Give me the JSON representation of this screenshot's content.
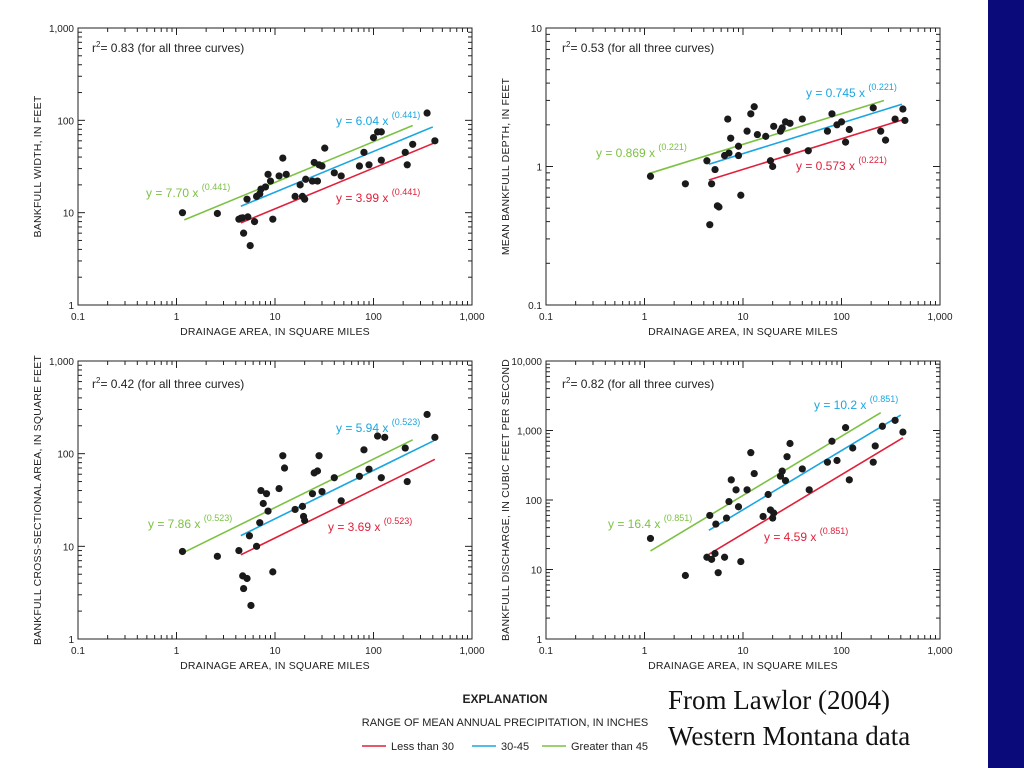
{
  "caption": {
    "line1": "From Lawlor (2004)",
    "line2": "Western Montana data"
  },
  "legend": {
    "heading": "EXPLANATION",
    "subheading": "RANGE OF MEAN ANNUAL PRECIPITATION, IN INCHES",
    "items": [
      {
        "label": "Less than 30",
        "color": "#e0203a"
      },
      {
        "label": "30-45",
        "color": "#1aa6e0"
      },
      {
        "label": "Greater than 45",
        "color": "#7cc242"
      }
    ]
  },
  "chart_data": [
    {
      "type": "scatter",
      "xlabel": "DRAINAGE AREA, IN SQUARE MILES",
      "ylabel": "BANKFULL WIDTH, IN FEET",
      "xscale": "log",
      "yscale": "log",
      "xlim": [
        0.1,
        1000
      ],
      "ylim": [
        1,
        1000
      ],
      "xticks": [
        "0.1",
        "1",
        "10",
        "100",
        "1,000"
      ],
      "yticks": [
        "1",
        "10",
        "100",
        "1,000"
      ],
      "r2": {
        "prefix": "r",
        "sup": "2",
        "text": "= 0.83 (for all three curves)"
      },
      "curves": [
        {
          "series": "Greater than 45",
          "color": "#7cc242",
          "coef": 7.7,
          "exp": 0.441,
          "x_range": [
            1.2,
            250
          ],
          "eq": "y = 7.70 x",
          "eq_exp": "(0.441)"
        },
        {
          "series": "30-45",
          "color": "#1aa6e0",
          "coef": 6.04,
          "exp": 0.441,
          "x_range": [
            4.5,
            400
          ],
          "eq": "y = 6.04 x",
          "eq_exp": "(0.441)"
        },
        {
          "series": "Less than 30",
          "color": "#e0203a",
          "coef": 3.99,
          "exp": 0.441,
          "x_range": [
            4.5,
            420
          ],
          "eq": "y = 3.99 x",
          "eq_exp": "(0.441)"
        }
      ],
      "points": [
        [
          1.15,
          10.0
        ],
        [
          2.6,
          9.8
        ],
        [
          4.3,
          8.5
        ],
        [
          4.5,
          8.7
        ],
        [
          4.7,
          8.8
        ],
        [
          4.8,
          6.0
        ],
        [
          5.2,
          14.0
        ],
        [
          5.3,
          9.0
        ],
        [
          5.6,
          4.4
        ],
        [
          6.2,
          8.0
        ],
        [
          6.5,
          15.0
        ],
        [
          7.0,
          16.0
        ],
        [
          7.2,
          18.0
        ],
        [
          8.0,
          19.0
        ],
        [
          8.5,
          26.0
        ],
        [
          9.0,
          22.0
        ],
        [
          9.5,
          8.5
        ],
        [
          11.0,
          25.0
        ],
        [
          12.0,
          39.0
        ],
        [
          13.0,
          26.0
        ],
        [
          16.0,
          15.0
        ],
        [
          18.0,
          20.0
        ],
        [
          19.0,
          15.0
        ],
        [
          20.0,
          14.0
        ],
        [
          20.5,
          23.0
        ],
        [
          24.0,
          22.0
        ],
        [
          25.0,
          35.0
        ],
        [
          27.0,
          22.0
        ],
        [
          28.0,
          33.0
        ],
        [
          30.0,
          32.0
        ],
        [
          32.0,
          50.0
        ],
        [
          40.0,
          27.0
        ],
        [
          47.0,
          25.0
        ],
        [
          72.0,
          32.0
        ],
        [
          80.0,
          45.0
        ],
        [
          90.0,
          33.0
        ],
        [
          100.0,
          65.0
        ],
        [
          110.0,
          75.0
        ],
        [
          120.0,
          75.0
        ],
        [
          120.0,
          37.0
        ],
        [
          210.0,
          45.0
        ],
        [
          220.0,
          33.0
        ],
        [
          250.0,
          55.0
        ],
        [
          350.0,
          120.0
        ],
        [
          420.0,
          60.0
        ]
      ]
    },
    {
      "type": "scatter",
      "xlabel": "DRAINAGE AREA, IN SQUARE MILES",
      "ylabel": "MEAN BANKFULL  DEPTH, IN FEET",
      "xscale": "log",
      "yscale": "log",
      "xlim": [
        0.1,
        1000
      ],
      "ylim": [
        0.1,
        10
      ],
      "xticks": [
        "0.1",
        "1",
        "10",
        "100",
        "1,000"
      ],
      "yticks": [
        "0.1",
        "1",
        "10"
      ],
      "r2": {
        "prefix": "r",
        "sup": "2",
        "text": "= 0.53 (for all three curves)"
      },
      "curves": [
        {
          "series": "Greater than 45",
          "color": "#7cc242",
          "coef": 0.869,
          "exp": 0.221,
          "x_range": [
            1.1,
            270
          ],
          "eq": "y = 0.869 x",
          "eq_exp": "(0.221)"
        },
        {
          "series": "30-45",
          "color": "#1aa6e0",
          "coef": 0.745,
          "exp": 0.221,
          "x_range": [
            4.5,
            410
          ],
          "eq": "y = 0.745 x",
          "eq_exp": "(0.221)"
        },
        {
          "series": "Less than 30",
          "color": "#e0203a",
          "coef": 0.573,
          "exp": 0.221,
          "x_range": [
            4.5,
            420
          ],
          "eq": "y = 0.573 x",
          "eq_exp": "(0.221)"
        }
      ],
      "points": [
        [
          1.15,
          0.85
        ],
        [
          2.6,
          0.75
        ],
        [
          4.3,
          1.1
        ],
        [
          4.6,
          0.38
        ],
        [
          4.8,
          0.75
        ],
        [
          5.2,
          0.95
        ],
        [
          5.5,
          0.52
        ],
        [
          5.7,
          0.51
        ],
        [
          6.5,
          1.2
        ],
        [
          7.0,
          2.2
        ],
        [
          7.2,
          1.25
        ],
        [
          7.5,
          1.6
        ],
        [
          9.0,
          1.2
        ],
        [
          9.0,
          1.4
        ],
        [
          9.5,
          0.62
        ],
        [
          11.0,
          1.8
        ],
        [
          12.0,
          2.4
        ],
        [
          13.0,
          2.7
        ],
        [
          14.0,
          1.7
        ],
        [
          17.0,
          1.65
        ],
        [
          19.0,
          1.1
        ],
        [
          20.0,
          1.0
        ],
        [
          20.5,
          1.95
        ],
        [
          24.0,
          1.8
        ],
        [
          25.0,
          1.9
        ],
        [
          27.0,
          2.1
        ],
        [
          28.0,
          1.3
        ],
        [
          30.0,
          2.05
        ],
        [
          40.0,
          2.2
        ],
        [
          46.0,
          1.3
        ],
        [
          72.0,
          1.8
        ],
        [
          80.0,
          2.4
        ],
        [
          90.0,
          2.0
        ],
        [
          100.0,
          2.1
        ],
        [
          110.0,
          1.5
        ],
        [
          120.0,
          1.85
        ],
        [
          210.0,
          2.65
        ],
        [
          250.0,
          1.8
        ],
        [
          280.0,
          1.55
        ],
        [
          350.0,
          2.2
        ],
        [
          420.0,
          2.6
        ],
        [
          440.0,
          2.15
        ]
      ]
    },
    {
      "type": "scatter",
      "xlabel": "DRAINAGE AREA, IN SQUARE MILES",
      "ylabel": "BANKFULL CROSS-SECTIONAL AREA, IN SQUARE FEET",
      "xscale": "log",
      "yscale": "log",
      "xlim": [
        0.1,
        1000
      ],
      "ylim": [
        1,
        1000
      ],
      "xticks": [
        "0.1",
        "1",
        "10",
        "100",
        "1,000"
      ],
      "yticks": [
        "1",
        "10",
        "100",
        "1,000"
      ],
      "r2": {
        "prefix": "r",
        "sup": "2",
        "text": "= 0.42 (for all three curves)"
      },
      "curves": [
        {
          "series": "Greater than 45",
          "color": "#7cc242",
          "coef": 7.86,
          "exp": 0.523,
          "x_range": [
            1.15,
            250
          ],
          "eq": "y = 7.86 x",
          "eq_exp": "(0.523)"
        },
        {
          "series": "30-45",
          "color": "#1aa6e0",
          "coef": 5.94,
          "exp": 0.523,
          "x_range": [
            4.5,
            410
          ],
          "eq": "y = 5.94 x",
          "eq_exp": "(0.523)"
        },
        {
          "series": "Less than 30",
          "color": "#e0203a",
          "coef": 3.69,
          "exp": 0.523,
          "x_range": [
            4.5,
            420
          ],
          "eq": "y = 3.69 x",
          "eq_exp": "(0.523)"
        }
      ],
      "points": [
        [
          1.15,
          8.8
        ],
        [
          2.6,
          7.8
        ],
        [
          4.3,
          9.0
        ],
        [
          4.7,
          4.8
        ],
        [
          4.8,
          3.5
        ],
        [
          5.2,
          4.5
        ],
        [
          5.5,
          13.0
        ],
        [
          5.7,
          2.3
        ],
        [
          6.5,
          10.0
        ],
        [
          7.0,
          18.0
        ],
        [
          7.2,
          40.0
        ],
        [
          7.6,
          29.0
        ],
        [
          8.2,
          37.0
        ],
        [
          8.5,
          24.0
        ],
        [
          9.5,
          5.3
        ],
        [
          11.0,
          42.0
        ],
        [
          12.0,
          95.0
        ],
        [
          12.5,
          70.0
        ],
        [
          16.0,
          25.0
        ],
        [
          19.0,
          27.0
        ],
        [
          19.5,
          21.0
        ],
        [
          20.0,
          19.0
        ],
        [
          24.0,
          37.0
        ],
        [
          25.0,
          62.0
        ],
        [
          27.0,
          65.0
        ],
        [
          28.0,
          95.0
        ],
        [
          30.0,
          39.0
        ],
        [
          40.0,
          55.0
        ],
        [
          47.0,
          31.0
        ],
        [
          72.0,
          57.0
        ],
        [
          80.0,
          110.0
        ],
        [
          90.0,
          68.0
        ],
        [
          110.0,
          155.0
        ],
        [
          120.0,
          55.0
        ],
        [
          130.0,
          150.0
        ],
        [
          210.0,
          115.0
        ],
        [
          220.0,
          50.0
        ],
        [
          350.0,
          265.0
        ],
        [
          420.0,
          150.0
        ]
      ]
    },
    {
      "type": "scatter",
      "xlabel": "DRAINAGE AREA, IN SQUARE MILES",
      "ylabel": "BANKFULL DISCHARGE, IN CUBIC FEET PER SECOND",
      "xscale": "log",
      "yscale": "log",
      "xlim": [
        0.1,
        1000
      ],
      "ylim": [
        1,
        10000
      ],
      "xticks": [
        "0.1",
        "1",
        "10",
        "100",
        "1,000"
      ],
      "yticks": [
        "1",
        "10",
        "100",
        "1,000",
        "10,000"
      ],
      "r2": {
        "prefix": "r",
        "sup": "2",
        "text": "= 0.82 (for all three curves)"
      },
      "curves": [
        {
          "series": "Greater than 45",
          "color": "#7cc242",
          "coef": 16.4,
          "exp": 0.851,
          "x_range": [
            1.15,
            250
          ],
          "eq": "y = 16.4 x",
          "eq_exp": "(0.851)"
        },
        {
          "series": "30-45",
          "color": "#1aa6e0",
          "coef": 10.2,
          "exp": 0.851,
          "x_range": [
            4.5,
            400
          ],
          "eq": "y = 10.2 x",
          "eq_exp": "(0.851)"
        },
        {
          "series": "Less than 30",
          "color": "#e0203a",
          "coef": 4.59,
          "exp": 0.851,
          "x_range": [
            4.5,
            420
          ],
          "eq": "y = 4.59 x",
          "eq_exp": "(0.851)"
        }
      ],
      "points": [
        [
          1.15,
          28.0
        ],
        [
          2.6,
          8.2
        ],
        [
          4.3,
          15.0
        ],
        [
          4.6,
          60.0
        ],
        [
          4.8,
          14.0
        ],
        [
          5.2,
          17.0
        ],
        [
          5.3,
          45.0
        ],
        [
          5.6,
          9.0
        ],
        [
          6.5,
          15.0
        ],
        [
          6.8,
          55.0
        ],
        [
          7.2,
          95.0
        ],
        [
          7.6,
          195.0
        ],
        [
          8.5,
          140.0
        ],
        [
          9.0,
          80.0
        ],
        [
          9.5,
          13.0
        ],
        [
          11.0,
          140.0
        ],
        [
          12.0,
          480.0
        ],
        [
          13.0,
          240.0
        ],
        [
          16.0,
          58.0
        ],
        [
          18.0,
          120.0
        ],
        [
          19.0,
          72.0
        ],
        [
          20.0,
          55.0
        ],
        [
          20.5,
          65.0
        ],
        [
          24.0,
          220.0
        ],
        [
          25.0,
          260.0
        ],
        [
          27.0,
          190.0
        ],
        [
          28.0,
          420.0
        ],
        [
          30.0,
          650.0
        ],
        [
          40.0,
          280.0
        ],
        [
          47.0,
          140.0
        ],
        [
          72.0,
          350.0
        ],
        [
          80.0,
          700.0
        ],
        [
          90.0,
          370.0
        ],
        [
          110.0,
          1100.0
        ],
        [
          120.0,
          195.0
        ],
        [
          130.0,
          560.0
        ],
        [
          210.0,
          350.0
        ],
        [
          220.0,
          600.0
        ],
        [
          260.0,
          1150.0
        ],
        [
          350.0,
          1400.0
        ],
        [
          420.0,
          950.0
        ]
      ]
    }
  ]
}
